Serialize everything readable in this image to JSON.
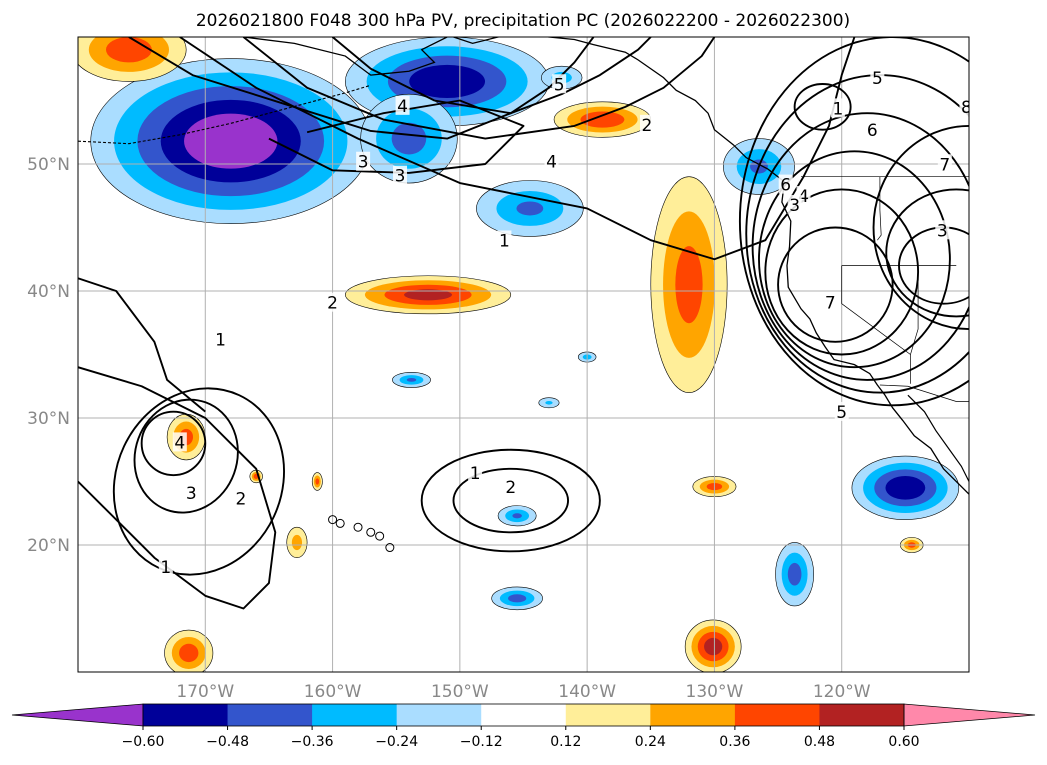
{
  "title": "2026021800 F048 300 hPa PV, precipitation PC (2026022200 - 2026022300)",
  "map": {
    "lon_range": [
      -180,
      -110
    ],
    "lat_range": [
      10,
      60
    ],
    "lat_ticks": [
      {
        "value": 20,
        "label": "20°N"
      },
      {
        "value": 30,
        "label": "30°N"
      },
      {
        "value": 40,
        "label": "40°N"
      },
      {
        "value": 50,
        "label": "50°N"
      }
    ],
    "lon_ticks": [
      {
        "value": -170,
        "label": "170°W"
      },
      {
        "value": -160,
        "label": "160°W"
      },
      {
        "value": -150,
        "label": "150°W"
      },
      {
        "value": -140,
        "label": "140°W"
      },
      {
        "value": -130,
        "label": "130°W"
      },
      {
        "value": -120,
        "label": "120°W"
      }
    ],
    "grid": true,
    "contour_color": "#000000",
    "coastline_color": "#000000"
  },
  "pv_contour_labels": [
    {
      "text": "1",
      "lon": -146.5,
      "lat": 43.9
    },
    {
      "text": "2",
      "lon": -135.3,
      "lat": 53.0
    },
    {
      "text": "3",
      "lon": -154.7,
      "lat": 49.0
    },
    {
      "text": "4",
      "lon": -154.5,
      "lat": 54.5
    },
    {
      "text": "5",
      "lon": -142.2,
      "lat": 56.2
    },
    {
      "text": "1",
      "lon": -120.3,
      "lat": 54.3
    },
    {
      "text": "1",
      "lon": -168.8,
      "lat": 36.1
    },
    {
      "text": "2",
      "lon": -160.0,
      "lat": 39.0
    },
    {
      "text": "3",
      "lon": -157.6,
      "lat": 50.1
    },
    {
      "text": "4",
      "lon": -142.8,
      "lat": 50.1
    },
    {
      "text": "5",
      "lon": -120.0,
      "lat": 30.4
    },
    {
      "text": "6",
      "lon": -124.4,
      "lat": 48.3
    },
    {
      "text": "1",
      "lon": -173.1,
      "lat": 18.2
    },
    {
      "text": "2",
      "lon": -167.2,
      "lat": 23.6
    },
    {
      "text": "3",
      "lon": -171.1,
      "lat": 24.0
    },
    {
      "text": "4",
      "lon": -172.0,
      "lat": 28.0
    },
    {
      "text": "1",
      "lon": -148.8,
      "lat": 25.6
    },
    {
      "text": "2",
      "lon": -146.0,
      "lat": 24.5
    },
    {
      "text": "5",
      "lon": -117.2,
      "lat": 56.7
    },
    {
      "text": "6",
      "lon": -117.6,
      "lat": 52.6
    },
    {
      "text": "7",
      "lon": -111.9,
      "lat": 49.9
    },
    {
      "text": "8",
      "lon": -110.2,
      "lat": 54.4
    },
    {
      "text": "3",
      "lon": -112.1,
      "lat": 44.7
    },
    {
      "text": "4",
      "lon": -123.0,
      "lat": 47.4
    },
    {
      "text": "3",
      "lon": -123.7,
      "lat": 46.7
    },
    {
      "text": "7",
      "lon": -120.9,
      "lat": 39.0
    }
  ],
  "colorbar": {
    "ticks": [
      {
        "value": -0.6,
        "label": "−0.60"
      },
      {
        "value": -0.48,
        "label": "−0.48"
      },
      {
        "value": -0.36,
        "label": "−0.36"
      },
      {
        "value": -0.24,
        "label": "−0.24"
      },
      {
        "value": -0.12,
        "label": "−0.12"
      },
      {
        "value": 0.12,
        "label": "0.12"
      },
      {
        "value": 0.24,
        "label": "0.24"
      },
      {
        "value": 0.36,
        "label": "0.36"
      },
      {
        "value": 0.48,
        "label": "0.48"
      },
      {
        "value": 0.6,
        "label": "0.60"
      }
    ],
    "colors": {
      "below_min": "#9933cc",
      "c1": "#000099",
      "c2": "#3355cc",
      "c3": "#00bbff",
      "c4": "#aaddff",
      "c5": "#ffffff",
      "c6": "#ffee99",
      "c7": "#ffa500",
      "c8": "#ff4500",
      "c9": "#b22222",
      "above_max": "#ff88aa"
    }
  },
  "precip_field": {
    "palette_note": "",
    "blobs": [
      {
        "lon": -168,
        "lat": 51.8,
        "rx": 11,
        "ry": 6.5,
        "value": -0.66
      },
      {
        "lon": -151,
        "lat": 56.5,
        "rx": 8,
        "ry": 3.5,
        "value": -0.55
      },
      {
        "lon": -154,
        "lat": 52,
        "rx": 3.8,
        "ry": 3.5,
        "value": -0.4
      },
      {
        "lon": -144.5,
        "lat": 46.5,
        "rx": 4.2,
        "ry": 2.2,
        "value": -0.36
      },
      {
        "lon": -142,
        "lat": 56.8,
        "rx": 1.6,
        "ry": 0.9,
        "value": -0.3
      },
      {
        "lon": -126.5,
        "lat": 49.8,
        "rx": 2.8,
        "ry": 2.2,
        "value": -0.36
      },
      {
        "lon": -115,
        "lat": 24.5,
        "rx": 4.2,
        "ry": 2.5,
        "value": -0.55
      },
      {
        "lon": -123.7,
        "lat": 17.7,
        "rx": 1.5,
        "ry": 2.5,
        "value": -0.4
      },
      {
        "lon": -145.5,
        "lat": 15.8,
        "rx": 2,
        "ry": 0.9,
        "value": -0.4
      },
      {
        "lon": -145.5,
        "lat": 22.3,
        "rx": 1.5,
        "ry": 0.8,
        "value": -0.36
      },
      {
        "lon": -153.8,
        "lat": 33.0,
        "rx": 1.5,
        "ry": 0.6,
        "value": -0.36
      },
      {
        "lon": -140,
        "lat": 34.8,
        "rx": 0.7,
        "ry": 0.4,
        "value": -0.3
      },
      {
        "lon": -143,
        "lat": 31.2,
        "rx": 0.8,
        "ry": 0.4,
        "value": -0.26
      },
      {
        "lon": -176,
        "lat": 59,
        "rx": 4.5,
        "ry": 2.5,
        "value": 0.42
      },
      {
        "lon": -138.8,
        "lat": 53.5,
        "rx": 3.8,
        "ry": 1.4,
        "value": 0.45
      },
      {
        "lon": -132,
        "lat": 40.5,
        "rx": 3.0,
        "ry": 8.5,
        "value": 0.4
      },
      {
        "lon": -152.5,
        "lat": 39.7,
        "rx": 6.5,
        "ry": 1.5,
        "value": 0.5
      },
      {
        "lon": -171.5,
        "lat": 28.5,
        "rx": 1.5,
        "ry": 1.8,
        "value": 0.4
      },
      {
        "lon": -171.3,
        "lat": 11.5,
        "rx": 1.9,
        "ry": 1.8,
        "value": 0.42
      },
      {
        "lon": -130.1,
        "lat": 12.0,
        "rx": 2.2,
        "ry": 2.1,
        "value": 0.52
      },
      {
        "lon": -130.0,
        "lat": 24.6,
        "rx": 1.7,
        "ry": 0.8,
        "value": 0.4
      },
      {
        "lon": -114.5,
        "lat": 20.0,
        "rx": 0.9,
        "ry": 0.6,
        "value": 0.4
      },
      {
        "lon": -162.8,
        "lat": 20.2,
        "rx": 0.8,
        "ry": 1.2,
        "value": 0.3
      },
      {
        "lon": -166,
        "lat": 25.4,
        "rx": 0.5,
        "ry": 0.5,
        "value": 0.42
      },
      {
        "lon": -161.2,
        "lat": 25.0,
        "rx": 0.4,
        "ry": 0.7,
        "value": 0.4
      }
    ]
  }
}
